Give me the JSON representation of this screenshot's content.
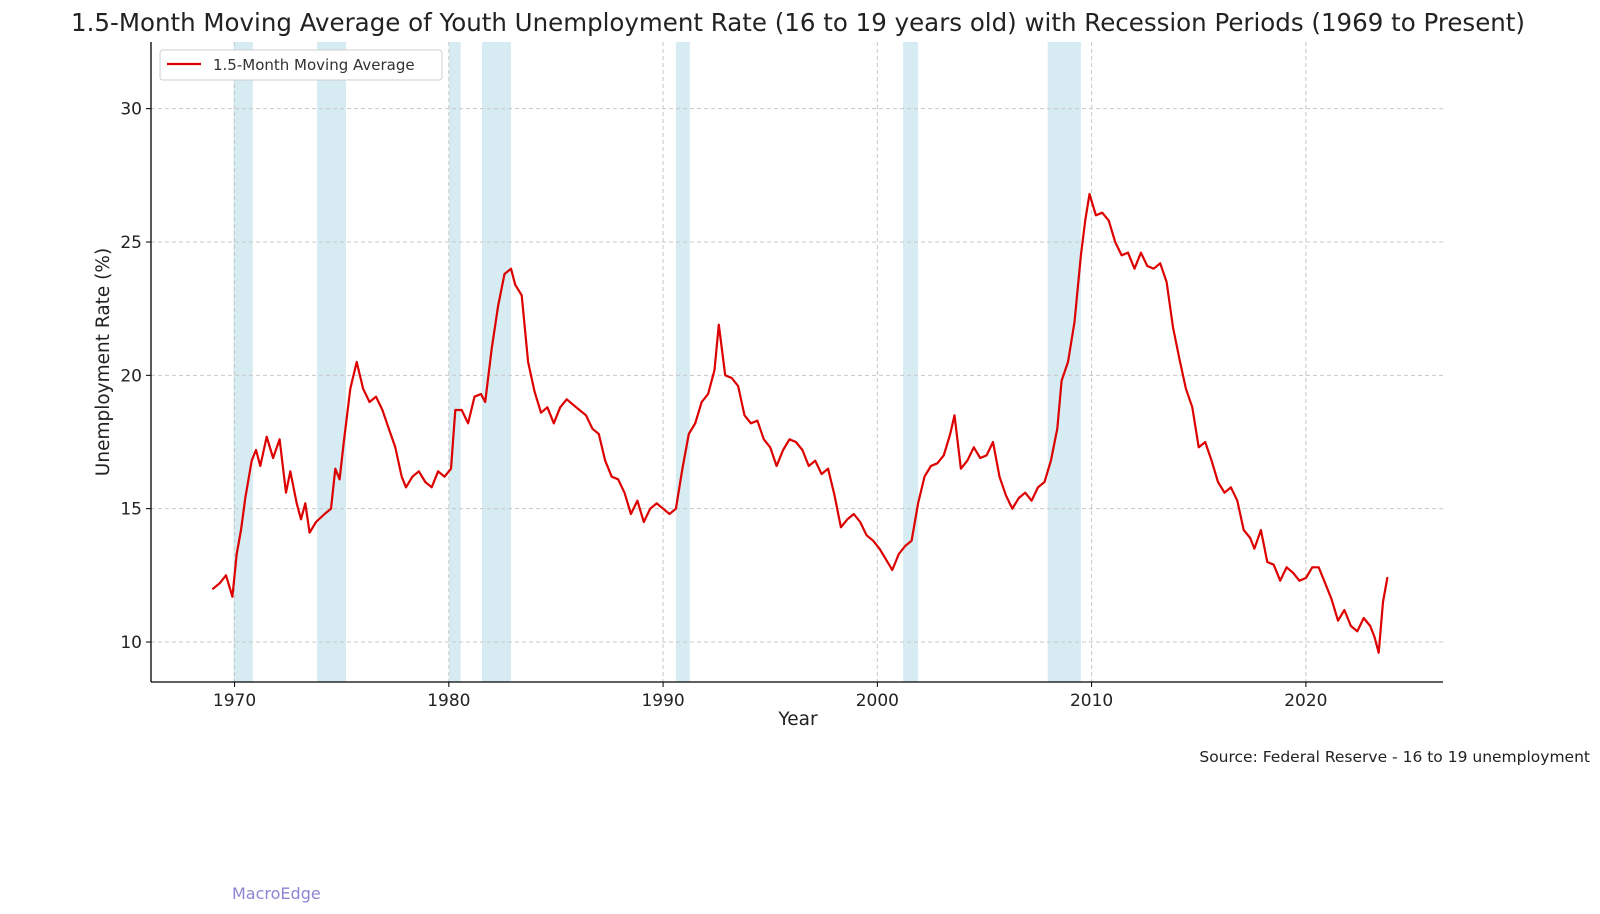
{
  "chart_data": {
    "type": "line",
    "title": "1.5-Month Moving Average of Youth Unemployment Rate (16 to 19 years old) with Recession Periods (1969 to Present)",
    "xlabel": "Year",
    "ylabel": "Unemployment Rate (%)",
    "xlim": [
      1966.1,
      2026.4
    ],
    "ylim": [
      8.5,
      32.5
    ],
    "xticks": [
      1970,
      1980,
      1990,
      2000,
      2010,
      2020
    ],
    "yticks": [
      10,
      15,
      20,
      25,
      30
    ],
    "grid": true,
    "legend_position": "top-left",
    "recessions": [
      [
        1969.95,
        1970.85
      ],
      [
        1973.85,
        1975.2
      ],
      [
        1980.0,
        1980.55
      ],
      [
        1981.55,
        1982.9
      ],
      [
        1990.6,
        1991.25
      ],
      [
        2001.2,
        2001.9
      ],
      [
        2007.95,
        2009.5
      ]
    ],
    "series": [
      {
        "name": "1.5-Month Moving Average",
        "color": "#dd0000",
        "points": [
          [
            1969.0,
            12.0
          ],
          [
            1969.3,
            12.2
          ],
          [
            1969.6,
            12.5
          ],
          [
            1969.9,
            11.7
          ],
          [
            1970.1,
            13.3
          ],
          [
            1970.3,
            14.2
          ],
          [
            1970.5,
            15.4
          ],
          [
            1970.8,
            16.8
          ],
          [
            1971.0,
            17.2
          ],
          [
            1971.2,
            16.6
          ],
          [
            1971.5,
            17.7
          ],
          [
            1971.8,
            16.9
          ],
          [
            1972.1,
            17.6
          ],
          [
            1972.4,
            15.6
          ],
          [
            1972.6,
            16.4
          ],
          [
            1972.9,
            15.2
          ],
          [
            1973.1,
            14.6
          ],
          [
            1973.3,
            15.2
          ],
          [
            1973.5,
            14.1
          ],
          [
            1973.8,
            14.5
          ],
          [
            1974.2,
            14.8
          ],
          [
            1974.5,
            15.0
          ],
          [
            1974.7,
            16.5
          ],
          [
            1974.9,
            16.1
          ],
          [
            1975.1,
            17.5
          ],
          [
            1975.4,
            19.5
          ],
          [
            1975.7,
            20.5
          ],
          [
            1976.0,
            19.5
          ],
          [
            1976.3,
            19.0
          ],
          [
            1976.6,
            19.2
          ],
          [
            1976.9,
            18.7
          ],
          [
            1977.2,
            18.0
          ],
          [
            1977.5,
            17.3
          ],
          [
            1977.8,
            16.2
          ],
          [
            1978.0,
            15.8
          ],
          [
            1978.3,
            16.2
          ],
          [
            1978.6,
            16.4
          ],
          [
            1978.9,
            16.0
          ],
          [
            1979.2,
            15.8
          ],
          [
            1979.5,
            16.4
          ],
          [
            1979.8,
            16.2
          ],
          [
            1980.1,
            16.5
          ],
          [
            1980.3,
            18.7
          ],
          [
            1980.6,
            18.7
          ],
          [
            1980.9,
            18.2
          ],
          [
            1981.2,
            19.2
          ],
          [
            1981.5,
            19.3
          ],
          [
            1981.7,
            19.0
          ],
          [
            1982.0,
            21.0
          ],
          [
            1982.3,
            22.6
          ],
          [
            1982.6,
            23.8
          ],
          [
            1982.9,
            24.0
          ],
          [
            1983.1,
            23.4
          ],
          [
            1983.4,
            23.0
          ],
          [
            1983.7,
            20.5
          ],
          [
            1984.0,
            19.4
          ],
          [
            1984.3,
            18.6
          ],
          [
            1984.6,
            18.8
          ],
          [
            1984.9,
            18.2
          ],
          [
            1985.2,
            18.8
          ],
          [
            1985.5,
            19.1
          ],
          [
            1985.8,
            18.9
          ],
          [
            1986.1,
            18.7
          ],
          [
            1986.4,
            18.5
          ],
          [
            1986.7,
            18.0
          ],
          [
            1987.0,
            17.8
          ],
          [
            1987.3,
            16.8
          ],
          [
            1987.6,
            16.2
          ],
          [
            1987.9,
            16.1
          ],
          [
            1988.2,
            15.6
          ],
          [
            1988.5,
            14.8
          ],
          [
            1988.8,
            15.3
          ],
          [
            1989.1,
            14.5
          ],
          [
            1989.4,
            15.0
          ],
          [
            1989.7,
            15.2
          ],
          [
            1990.0,
            15.0
          ],
          [
            1990.3,
            14.8
          ],
          [
            1990.6,
            15.0
          ],
          [
            1990.9,
            16.5
          ],
          [
            1991.2,
            17.8
          ],
          [
            1991.5,
            18.2
          ],
          [
            1991.8,
            19.0
          ],
          [
            1992.1,
            19.3
          ],
          [
            1992.4,
            20.2
          ],
          [
            1992.6,
            21.9
          ],
          [
            1992.9,
            20.0
          ],
          [
            1993.2,
            19.9
          ],
          [
            1993.5,
            19.6
          ],
          [
            1993.8,
            18.5
          ],
          [
            1994.1,
            18.2
          ],
          [
            1994.4,
            18.3
          ],
          [
            1994.7,
            17.6
          ],
          [
            1995.0,
            17.3
          ],
          [
            1995.3,
            16.6
          ],
          [
            1995.6,
            17.2
          ],
          [
            1995.9,
            17.6
          ],
          [
            1996.2,
            17.5
          ],
          [
            1996.5,
            17.2
          ],
          [
            1996.8,
            16.6
          ],
          [
            1997.1,
            16.8
          ],
          [
            1997.4,
            16.3
          ],
          [
            1997.7,
            16.5
          ],
          [
            1998.0,
            15.5
          ],
          [
            1998.3,
            14.3
          ],
          [
            1998.6,
            14.6
          ],
          [
            1998.9,
            14.8
          ],
          [
            1999.2,
            14.5
          ],
          [
            1999.5,
            14.0
          ],
          [
            1999.8,
            13.8
          ],
          [
            2000.1,
            13.5
          ],
          [
            2000.4,
            13.1
          ],
          [
            2000.7,
            12.7
          ],
          [
            2001.0,
            13.3
          ],
          [
            2001.3,
            13.6
          ],
          [
            2001.6,
            13.8
          ],
          [
            2001.9,
            15.2
          ],
          [
            2002.2,
            16.2
          ],
          [
            2002.5,
            16.6
          ],
          [
            2002.8,
            16.7
          ],
          [
            2003.1,
            17.0
          ],
          [
            2003.4,
            17.8
          ],
          [
            2003.6,
            18.5
          ],
          [
            2003.9,
            16.5
          ],
          [
            2004.2,
            16.8
          ],
          [
            2004.5,
            17.3
          ],
          [
            2004.8,
            16.9
          ],
          [
            2005.1,
            17.0
          ],
          [
            2005.4,
            17.5
          ],
          [
            2005.7,
            16.2
          ],
          [
            2006.0,
            15.5
          ],
          [
            2006.3,
            15.0
          ],
          [
            2006.6,
            15.4
          ],
          [
            2006.9,
            15.6
          ],
          [
            2007.2,
            15.3
          ],
          [
            2007.5,
            15.8
          ],
          [
            2007.8,
            16.0
          ],
          [
            2008.1,
            16.8
          ],
          [
            2008.4,
            18.0
          ],
          [
            2008.6,
            19.8
          ],
          [
            2008.9,
            20.5
          ],
          [
            2009.2,
            22.0
          ],
          [
            2009.5,
            24.5
          ],
          [
            2009.7,
            25.8
          ],
          [
            2009.9,
            26.8
          ],
          [
            2010.2,
            26.0
          ],
          [
            2010.5,
            26.1
          ],
          [
            2010.8,
            25.8
          ],
          [
            2011.1,
            25.0
          ],
          [
            2011.4,
            24.5
          ],
          [
            2011.7,
            24.6
          ],
          [
            2012.0,
            24.0
          ],
          [
            2012.3,
            24.6
          ],
          [
            2012.6,
            24.1
          ],
          [
            2012.9,
            24.0
          ],
          [
            2013.2,
            24.2
          ],
          [
            2013.5,
            23.5
          ],
          [
            2013.8,
            21.8
          ],
          [
            2014.1,
            20.6
          ],
          [
            2014.4,
            19.5
          ],
          [
            2014.7,
            18.8
          ],
          [
            2015.0,
            17.3
          ],
          [
            2015.3,
            17.5
          ],
          [
            2015.6,
            16.8
          ],
          [
            2015.9,
            16.0
          ],
          [
            2016.2,
            15.6
          ],
          [
            2016.5,
            15.8
          ],
          [
            2016.8,
            15.3
          ],
          [
            2017.1,
            14.2
          ],
          [
            2017.4,
            13.9
          ],
          [
            2017.6,
            13.5
          ],
          [
            2017.9,
            14.2
          ],
          [
            2018.2,
            13.0
          ],
          [
            2018.5,
            12.9
          ],
          [
            2018.8,
            12.3
          ],
          [
            2019.1,
            12.8
          ],
          [
            2019.4,
            12.6
          ],
          [
            2019.7,
            12.3
          ],
          [
            2020.0,
            12.4
          ],
          [
            2020.3,
            12.8
          ],
          [
            2020.6,
            12.8
          ],
          [
            2020.9,
            12.2
          ],
          [
            2021.2,
            11.6
          ],
          [
            2021.5,
            10.8
          ],
          [
            2021.8,
            11.2
          ],
          [
            2022.1,
            10.6
          ],
          [
            2022.4,
            10.4
          ],
          [
            2022.7,
            10.9
          ],
          [
            2023.0,
            10.6
          ],
          [
            2023.2,
            10.2
          ],
          [
            2023.4,
            9.6
          ],
          [
            2023.6,
            11.5
          ],
          [
            2023.8,
            12.4
          ]
        ]
      }
    ],
    "source": "Source: Federal Reserve - 16 to 19 unemployment"
  },
  "watermark": "MacroEdge"
}
